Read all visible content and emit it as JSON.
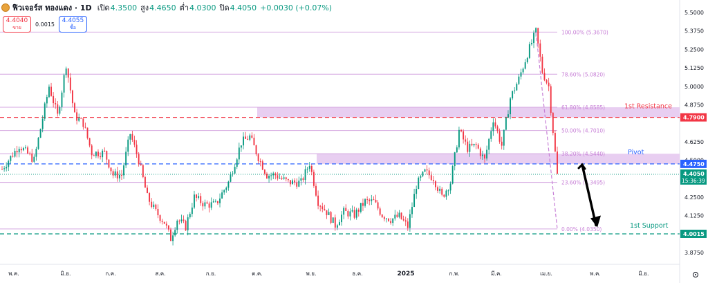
{
  "header": {
    "title": "ฟิวเจอร์ส ทองแดง · 1D",
    "open_label": "เปิด",
    "open": "4.3500",
    "high_label": "สูง",
    "high": "4.4650",
    "low_label": "ต่ำ",
    "low": "4.0300",
    "close_label": "ปิด",
    "close": "4.4050",
    "change": "+0.0030 (+0.07%)"
  },
  "quotes": {
    "sell_price": "4.4040",
    "sell_label": "ขาย",
    "spread": "0.0015",
    "buy_price": "4.4055",
    "buy_label": "ซื้อ"
  },
  "colors": {
    "up": "#089981",
    "down": "#f23645",
    "fib_line": "#d4a6e0",
    "fib_text": "#c77fd6",
    "zone": "#e4c5ee",
    "resistance": "#f23645",
    "pivot": "#2962ff",
    "support": "#089981",
    "current": "#089981"
  },
  "chart_data": {
    "type": "candlestick",
    "ylim": [
      3.8,
      5.5
    ],
    "y_ticks": [
      "5.5000",
      "5.3750",
      "5.2500",
      "5.1250",
      "5.0000",
      "4.8750",
      "4.6250",
      "4.5000",
      "4.3750",
      "4.2500",
      "4.1250",
      "3.8750"
    ],
    "x_ticks": [
      "พ.ค.",
      "มิ.ย.",
      "ก.ค.",
      "ส.ค.",
      "ก.ย.",
      "ต.ค.",
      "พ.ย.",
      "ธ.ค.",
      "2025",
      "ก.พ.",
      "มี.ค.",
      "เม.ย.",
      "พ.ค.",
      "มิ.ย."
    ],
    "fib_levels": [
      {
        "label": "100.00% (5.3670)",
        "value": 5.367
      },
      {
        "label": "78.60% (5.0820)",
        "value": 5.082
      },
      {
        "label": "61.80% (4.8585)",
        "value": 4.8585
      },
      {
        "label": "50.00% (4.7010)",
        "value": 4.701
      },
      {
        "label": "38.20% (4.5440)",
        "value": 4.544
      },
      {
        "label": "23.60% (4.3495)",
        "value": 4.3495
      },
      {
        "label": "0.00% (4.0350)",
        "value": 4.035
      }
    ],
    "levels": [
      {
        "name": "1st Resistance",
        "value": 4.79,
        "tag": "4.7900",
        "color": "#f23645"
      },
      {
        "name": "Pivot",
        "value": 4.475,
        "tag": "4.4750",
        "color": "#2962ff"
      },
      {
        "name": "1st Support",
        "value": 4.0015,
        "tag": "4.0015",
        "color": "#089981"
      }
    ],
    "current": {
      "value": 4.405,
      "tag": "4.4050",
      "countdown": "15:36:39"
    },
    "zones": [
      [
        4.79,
        4.8585
      ],
      [
        4.475,
        4.544
      ]
    ],
    "anchors": [
      [
        0,
        4.44
      ],
      [
        8,
        4.6
      ],
      [
        15,
        4.5
      ],
      [
        22,
        5.0
      ],
      [
        26,
        4.8
      ],
      [
        30,
        5.15
      ],
      [
        34,
        4.8
      ],
      [
        38,
        4.75
      ],
      [
        42,
        4.55
      ],
      [
        48,
        4.55
      ],
      [
        52,
        4.4
      ],
      [
        56,
        4.4
      ],
      [
        60,
        4.68
      ],
      [
        64,
        4.5
      ],
      [
        68,
        4.25
      ],
      [
        72,
        4.15
      ],
      [
        76,
        4.08
      ],
      [
        79,
        3.97
      ],
      [
        82,
        4.1
      ],
      [
        86,
        4.05
      ],
      [
        90,
        4.25
      ],
      [
        95,
        4.2
      ],
      [
        100,
        4.2
      ],
      [
        106,
        4.35
      ],
      [
        112,
        4.62
      ],
      [
        116,
        4.66
      ],
      [
        120,
        4.52
      ],
      [
        124,
        4.4
      ],
      [
        128,
        4.4
      ],
      [
        134,
        4.35
      ],
      [
        140,
        4.35
      ],
      [
        144,
        4.48
      ],
      [
        148,
        4.22
      ],
      [
        152,
        4.15
      ],
      [
        156,
        4.06
      ],
      [
        160,
        4.15
      ],
      [
        165,
        4.13
      ],
      [
        170,
        4.22
      ],
      [
        174,
        4.22
      ],
      [
        178,
        4.13
      ],
      [
        182,
        4.1
      ],
      [
        186,
        4.12
      ],
      [
        190,
        4.05
      ],
      [
        194,
        4.33
      ],
      [
        198,
        4.42
      ],
      [
        202,
        4.38
      ],
      [
        206,
        4.25
      ],
      [
        210,
        4.35
      ],
      [
        214,
        4.7
      ],
      [
        218,
        4.58
      ],
      [
        222,
        4.6
      ],
      [
        226,
        4.5
      ],
      [
        230,
        4.78
      ],
      [
        234,
        4.6
      ],
      [
        238,
        4.92
      ],
      [
        242,
        5.05
      ],
      [
        246,
        5.22
      ],
      [
        250,
        5.37
      ],
      [
        253,
        5.1
      ],
      [
        256,
        5.0
      ],
      [
        258,
        4.7
      ],
      [
        260,
        4.4
      ]
    ],
    "arrow": {
      "from": [
        268,
        4.47
      ],
      "to": [
        278,
        4.06
      ]
    }
  }
}
